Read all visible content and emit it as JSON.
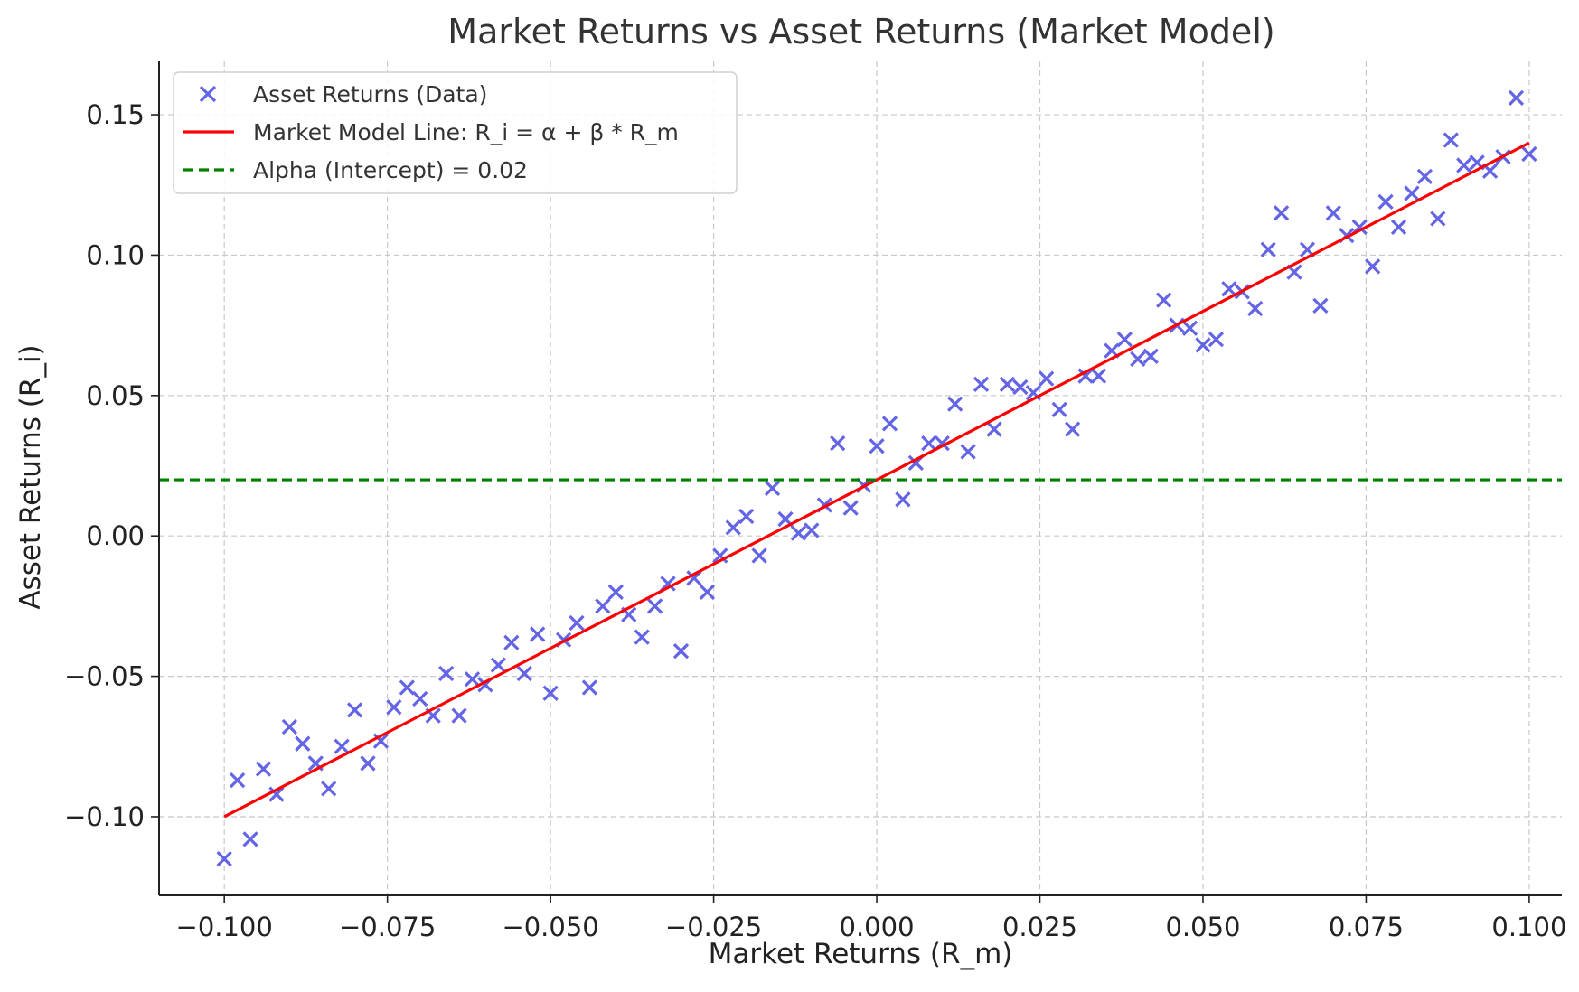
{
  "chart_data": {
    "type": "scatter",
    "title": "Market Returns vs Asset Returns (Market Model)",
    "xlabel": "Market Returns (R_m)",
    "ylabel": "Asset Returns (R_i)",
    "xlim": [
      -0.11,
      0.105
    ],
    "ylim": [
      -0.128,
      0.169
    ],
    "grid": true,
    "legend_position": "top-left",
    "x_ticks": [
      -0.1,
      -0.075,
      -0.05,
      -0.025,
      0.0,
      0.025,
      0.05,
      0.075,
      0.1
    ],
    "x_tick_labels": [
      "−0.100",
      "−0.075",
      "−0.050",
      "−0.025",
      "0.000",
      "0.025",
      "0.050",
      "0.075",
      "0.100"
    ],
    "y_ticks": [
      -0.1,
      -0.05,
      0.0,
      0.05,
      0.1,
      0.15
    ],
    "y_tick_labels": [
      "−0.10",
      "−0.05",
      "0.00",
      "0.05",
      "0.10",
      "0.15"
    ],
    "series": [
      {
        "name": "Asset Returns (Data)",
        "kind": "scatter",
        "marker": "x",
        "color": "#6464e6",
        "x": [
          -0.1,
          -0.098,
          -0.096,
          -0.094,
          -0.092,
          -0.09,
          -0.088,
          -0.086,
          -0.084,
          -0.082,
          -0.08,
          -0.078,
          -0.076,
          -0.074,
          -0.072,
          -0.07,
          -0.068,
          -0.066,
          -0.064,
          -0.062,
          -0.06,
          -0.058,
          -0.056,
          -0.054,
          -0.052,
          -0.05,
          -0.048,
          -0.046,
          -0.044,
          -0.042,
          -0.04,
          -0.038,
          -0.036,
          -0.034,
          -0.032,
          -0.03,
          -0.028,
          -0.026,
          -0.024,
          -0.022,
          -0.02,
          -0.018,
          -0.016,
          -0.014,
          -0.012,
          -0.01,
          -0.008,
          -0.006,
          -0.004,
          -0.002,
          0.0,
          0.002,
          0.004,
          0.006,
          0.008,
          0.01,
          0.012,
          0.014,
          0.016,
          0.018,
          0.02,
          0.022,
          0.024,
          0.026,
          0.028,
          0.03,
          0.032,
          0.034,
          0.036,
          0.038,
          0.04,
          0.042,
          0.044,
          0.046,
          0.048,
          0.05,
          0.052,
          0.054,
          0.056,
          0.058,
          0.06,
          0.062,
          0.064,
          0.066,
          0.068,
          0.07,
          0.072,
          0.074,
          0.076,
          0.078,
          0.08,
          0.082,
          0.084,
          0.086,
          0.088,
          0.09,
          0.092,
          0.094,
          0.096,
          0.098,
          0.1
        ],
        "y": [
          -0.115,
          -0.087,
          -0.108,
          -0.083,
          -0.092,
          -0.068,
          -0.074,
          -0.081,
          -0.09,
          -0.075,
          -0.062,
          -0.081,
          -0.073,
          -0.061,
          -0.054,
          -0.058,
          -0.064,
          -0.049,
          -0.064,
          -0.051,
          -0.053,
          -0.046,
          -0.038,
          -0.049,
          -0.035,
          -0.056,
          -0.037,
          -0.031,
          -0.054,
          -0.025,
          -0.02,
          -0.028,
          -0.036,
          -0.025,
          -0.017,
          -0.041,
          -0.015,
          -0.02,
          -0.007,
          0.003,
          0.007,
          -0.007,
          0.017,
          0.006,
          0.001,
          0.002,
          0.011,
          0.033,
          0.01,
          0.018,
          0.032,
          0.04,
          0.013,
          0.026,
          0.033,
          0.033,
          0.047,
          0.03,
          0.054,
          0.038,
          0.054,
          0.053,
          0.051,
          0.056,
          0.045,
          0.038,
          0.057,
          0.057,
          0.066,
          0.07,
          0.063,
          0.064,
          0.084,
          0.075,
          0.074,
          0.068,
          0.07,
          0.088,
          0.087,
          0.081,
          0.102,
          0.115,
          0.094,
          0.102,
          0.082,
          0.115,
          0.107,
          0.11,
          0.096,
          0.119,
          0.11,
          0.122,
          0.128,
          0.113,
          0.141,
          0.132,
          0.133,
          0.13,
          0.135,
          0.156,
          0.136
        ]
      },
      {
        "name": "Market Model Line: R_i = α + β * R_m",
        "kind": "line",
        "color": "#ff0000",
        "x": [
          -0.1,
          0.1
        ],
        "y": [
          -0.1,
          0.14
        ]
      },
      {
        "name": "Alpha (Intercept) = 0.02",
        "kind": "hline",
        "color": "#008000",
        "dashed": true,
        "y": 0.02
      }
    ]
  }
}
